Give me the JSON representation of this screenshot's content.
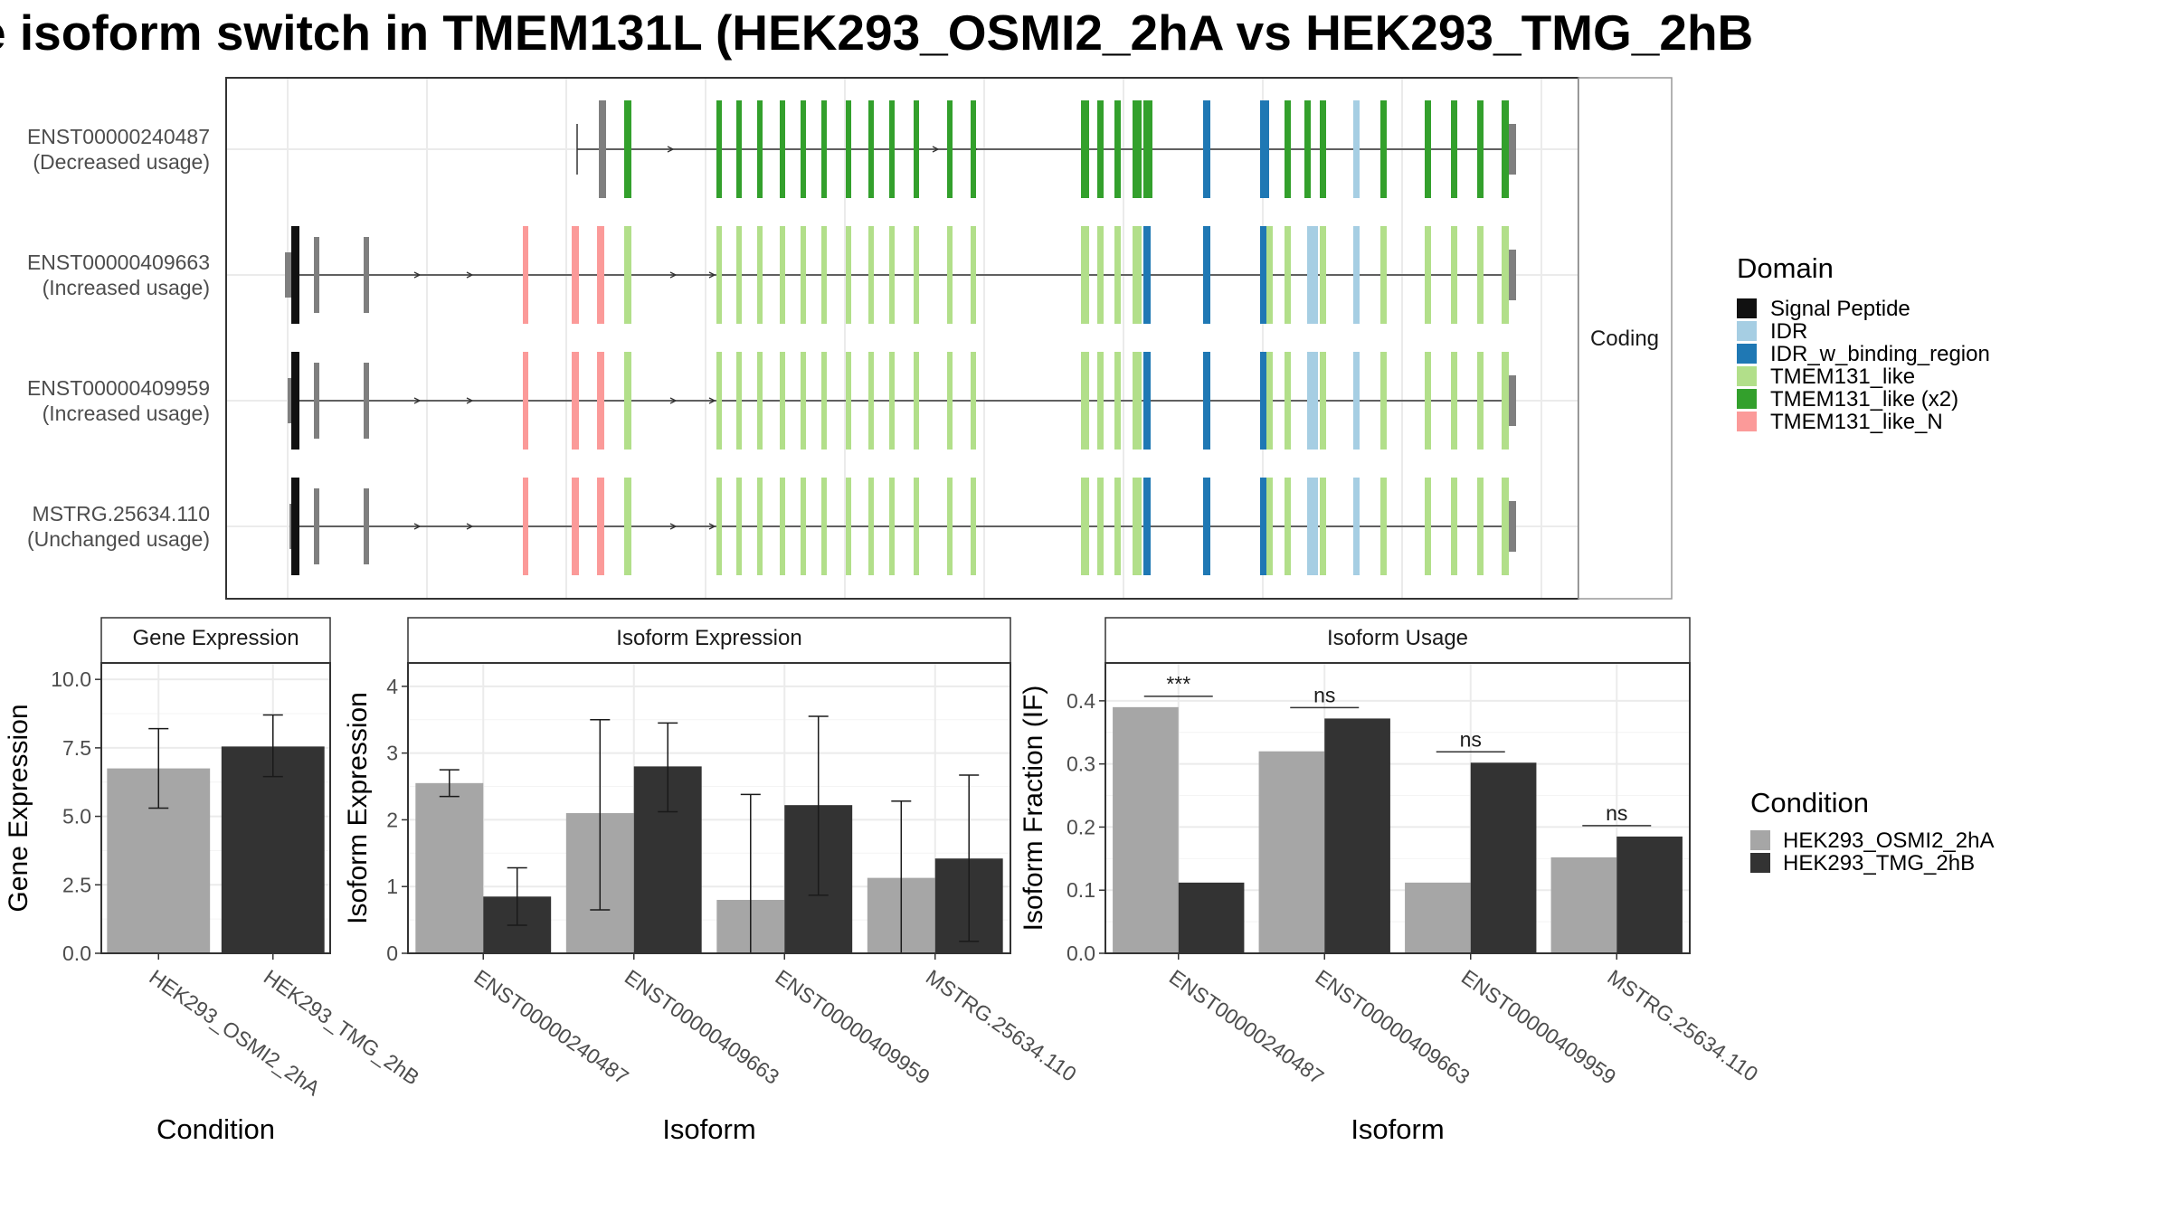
{
  "title": "e isoform switch in TMEM131L (HEK293_OSMI2_2hA vs HEK293_TMG_2hB",
  "colors": {
    "condition_a": "#a6a6a6",
    "condition_b": "#333333",
    "Signal Peptide": "#111111",
    "IDR": "#a6cee3",
    "IDR_w_binding_region": "#1f78b4",
    "TMEM131_like": "#b2df8a",
    "TMEM131_like (x2)": "#33a02c",
    "TMEM131_like_N": "#fb9a99",
    "noncoding_exon": "#7f7f7f"
  },
  "chart_data": [
    {
      "type": "gene-structure",
      "strip_label": "Coding",
      "isoforms": [
        {
          "id": "ENST00000240487",
          "usage": "(Decreased usage)"
        },
        {
          "id": "ENST00000409663",
          "usage": "(Increased usage)"
        },
        {
          "id": "ENST00000409959",
          "usage": "(Increased usage)"
        },
        {
          "id": "MSTRG.25634.110",
          "usage": "(Unchanged usage)"
        }
      ],
      "legend": {
        "title": "Domain",
        "items": [
          "Signal Peptide",
          "IDR",
          "IDR_w_binding_region",
          "TMEM131_like",
          "TMEM131_like (x2)",
          "TMEM131_like_N"
        ]
      }
    },
    {
      "type": "bar",
      "title": "Gene Expression",
      "xlabel": "Condition",
      "ylabel": "Gene Expression",
      "categories": [
        "HEK293_OSMI2_2hA",
        "HEK293_TMG_2hB"
      ],
      "values": [
        6.75,
        7.55
      ],
      "error_low": [
        5.3,
        6.45
      ],
      "error_high": [
        8.2,
        8.7
      ],
      "ylim": [
        0,
        10.6
      ],
      "yticks": [
        0.0,
        2.5,
        5.0,
        7.5,
        10.0
      ],
      "ytick_labels": [
        "0.0",
        "2.5",
        "5.0",
        "7.5",
        "10.0"
      ]
    },
    {
      "type": "bar",
      "title": "Isoform Expression",
      "xlabel": "Isoform",
      "ylabel": "Isoform Expression",
      "categories": [
        "ENST00000240487",
        "ENST00000409663",
        "ENST00000409959",
        "MSTRG.25634.110"
      ],
      "series": [
        {
          "name": "HEK293_OSMI2_2hA",
          "values": [
            2.55,
            2.1,
            0.8,
            1.13
          ],
          "error_low": [
            2.35,
            0.65,
            0.0,
            0.0
          ],
          "error_high": [
            2.75,
            3.5,
            2.38,
            2.28
          ]
        },
        {
          "name": "HEK293_TMG_2hB",
          "values": [
            0.85,
            2.8,
            2.22,
            1.42
          ],
          "error_low": [
            0.42,
            2.12,
            0.87,
            0.18
          ],
          "error_high": [
            1.28,
            3.45,
            3.55,
            2.67
          ]
        }
      ],
      "ylim": [
        0,
        4.35
      ],
      "yticks": [
        0,
        1,
        2,
        3,
        4
      ],
      "ytick_labels": [
        "0",
        "1",
        "2",
        "3",
        "4"
      ]
    },
    {
      "type": "bar",
      "title": "Isoform Usage",
      "xlabel": "Isoform",
      "ylabel": "Isoform Fraction (IF)",
      "categories": [
        "ENST00000240487",
        "ENST00000409663",
        "ENST00000409959",
        "MSTRG.25634.110"
      ],
      "series": [
        {
          "name": "HEK293_OSMI2_2hA",
          "values": [
            0.39,
            0.32,
            0.112,
            0.152
          ]
        },
        {
          "name": "HEK293_TMG_2hB",
          "values": [
            0.112,
            0.372,
            0.302,
            0.185
          ]
        }
      ],
      "significance": [
        "***",
        "ns",
        "ns",
        "ns"
      ],
      "ylim": [
        0,
        0.46
      ],
      "yticks": [
        0.0,
        0.1,
        0.2,
        0.3,
        0.4
      ],
      "ytick_labels": [
        "0.0",
        "0.1",
        "0.2",
        "0.3",
        "0.4"
      ]
    }
  ],
  "condition_legend": {
    "title": "Condition",
    "items": [
      "HEK293_OSMI2_2hA",
      "HEK293_TMG_2hB"
    ]
  }
}
